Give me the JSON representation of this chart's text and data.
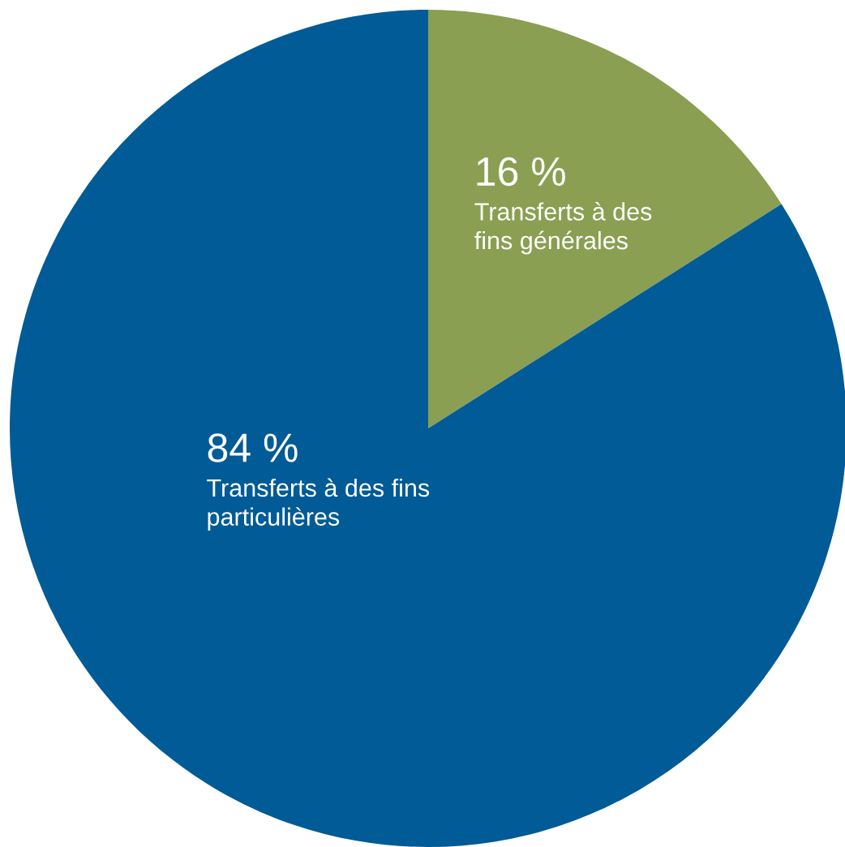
{
  "chart_data": {
    "type": "pie",
    "categories": [
      "Transferts à des fins générales",
      "Transferts à des fins particulières"
    ],
    "values": [
      16,
      84
    ],
    "colors": [
      "#8a9f52",
      "#005b96"
    ],
    "value_labels": [
      "16 %",
      "84 %"
    ]
  }
}
